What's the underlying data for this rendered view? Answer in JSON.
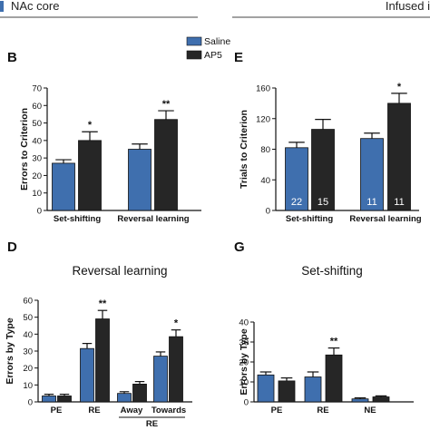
{
  "header": {
    "left_title": "NAc core",
    "right_title": "Infused i"
  },
  "legend": {
    "items": [
      {
        "label": "Saline",
        "color": "#3f6fae"
      },
      {
        "label": "AP5",
        "color": "#262626"
      }
    ]
  },
  "colors": {
    "saline": "#3f6fae",
    "ap5": "#262626",
    "axis": "#111111"
  },
  "chart_data": [
    {
      "panel": "B",
      "type": "bar",
      "title": "",
      "xlabel": "",
      "ylabel": "Errors to Criterion",
      "ylim": [
        0,
        70
      ],
      "yticks": [
        0,
        10,
        20,
        30,
        40,
        50,
        60,
        70
      ],
      "categories": [
        "Set-shifting",
        "Reversal learning"
      ],
      "series": [
        {
          "name": "Saline",
          "values": [
            27,
            35
          ],
          "errors": [
            2,
            3
          ]
        },
        {
          "name": "AP5",
          "values": [
            40,
            52
          ],
          "errors": [
            5,
            5
          ]
        }
      ],
      "annotations": [
        {
          "category": 0,
          "series": 1,
          "text": "*"
        },
        {
          "category": 1,
          "series": 1,
          "text": "**"
        }
      ]
    },
    {
      "panel": "E",
      "type": "bar",
      "title": "",
      "xlabel": "",
      "ylabel": "Trials to Criterion",
      "ylim": [
        0,
        160
      ],
      "yticks": [
        0,
        40,
        80,
        120,
        160
      ],
      "categories": [
        "Set-shifting",
        "Reversal learning"
      ],
      "series": [
        {
          "name": "Saline",
          "values": [
            82,
            94
          ],
          "errors": [
            7,
            7
          ],
          "n": [
            "22",
            "11"
          ]
        },
        {
          "name": "AP5",
          "values": [
            106,
            140
          ],
          "errors": [
            13,
            13
          ],
          "n": [
            "15",
            "11"
          ]
        }
      ],
      "annotations": [
        {
          "category": 1,
          "series": 1,
          "text": "*"
        }
      ]
    },
    {
      "panel": "D",
      "type": "bar",
      "title": "Reversal learning",
      "xlabel": "",
      "ylabel": "Errors by Type",
      "ylim": [
        0,
        60
      ],
      "yticks": [
        0,
        10,
        20,
        30,
        40,
        50,
        60
      ],
      "categories": [
        "PE",
        "RE",
        "Away",
        "Towards"
      ],
      "group_label": {
        "text": "RE",
        "spans": [
          2,
          3
        ]
      },
      "series": [
        {
          "name": "Saline",
          "values": [
            3.5,
            31.5,
            5,
            27
          ],
          "errors": [
            1,
            3,
            1,
            2.5
          ]
        },
        {
          "name": "AP5",
          "values": [
            3.5,
            49,
            10.5,
            38.5
          ],
          "errors": [
            1,
            5,
            1.5,
            4
          ]
        }
      ],
      "annotations": [
        {
          "category": 1,
          "series": 1,
          "text": "**"
        },
        {
          "category": 3,
          "series": 1,
          "text": "*"
        }
      ]
    },
    {
      "panel": "G",
      "type": "bar",
      "title": "Set-shifting",
      "xlabel": "",
      "ylabel": "Errors by Type",
      "ylim": [
        0,
        40
      ],
      "yticks": [
        0,
        10,
        20,
        30,
        40
      ],
      "categories": [
        "PE",
        "RE",
        "NE"
      ],
      "series": [
        {
          "name": "Saline",
          "values": [
            13.5,
            12.5,
            1.5
          ],
          "errors": [
            1.5,
            2.5,
            0.5
          ]
        },
        {
          "name": "AP5",
          "values": [
            10.5,
            23.5,
            2.5
          ],
          "errors": [
            1.5,
            3.5,
            0.5
          ]
        }
      ],
      "annotations": [
        {
          "category": 1,
          "series": 1,
          "text": "**"
        }
      ]
    }
  ]
}
